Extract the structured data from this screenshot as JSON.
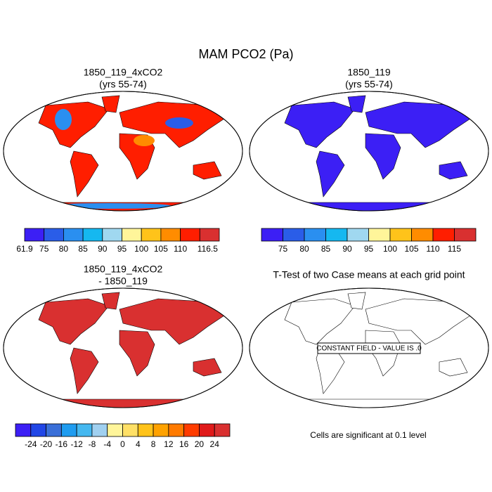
{
  "title": "MAM PCO2 (Pa)",
  "panels": [
    {
      "title": [
        "1850_119_4xCO2",
        "(yrs 55-74)"
      ],
      "colorbar": {
        "colors": [
          "#3c1ff5",
          "#2a5de8",
          "#2a8ff0",
          "#15b8f0",
          "#a0d8f0",
          "#fff59a",
          "#ffc31a",
          "#ff8c00",
          "#ff1e00",
          "#d93030"
        ],
        "labels": [
          61.9,
          75,
          80,
          85,
          90,
          95,
          100,
          105,
          110,
          116.5
        ]
      }
    },
    {
      "title": [
        "1850_119",
        "(yrs 55-74)"
      ],
      "colorbar": {
        "colors": [
          "#3c1ff5",
          "#2a5de8",
          "#2a8ff0",
          "#15b8f0",
          "#a0d8f0",
          "#fff59a",
          "#ffc31a",
          "#ff8c00",
          "#ff1e00",
          "#d93030"
        ],
        "labels": [
          75,
          80,
          85,
          90,
          95,
          100,
          105,
          110,
          115
        ]
      }
    },
    {
      "title": [
        "1850_119_4xCO2",
        "- 1850_119"
      ],
      "colorbar": {
        "colors": [
          "#3c1ff5",
          "#2146e6",
          "#3a6fd8",
          "#1f9cf0",
          "#45b8f0",
          "#a0d0f0",
          "#fff59a",
          "#ffe066",
          "#ffc31a",
          "#ffa200",
          "#ff7a00",
          "#ff3c00",
          "#e01a1a",
          "#d93030"
        ],
        "labels": [
          -24,
          -20,
          -16,
          -12,
          -8,
          -4,
          0,
          4,
          8,
          12,
          16,
          20,
          24
        ]
      }
    },
    {
      "title": [
        "T-Test of two Case means at each grid point"
      ],
      "annotation": "CONSTANT FIELD - VALUE IS .0",
      "footnote": "Cells are significant at 0.1 level"
    }
  ]
}
